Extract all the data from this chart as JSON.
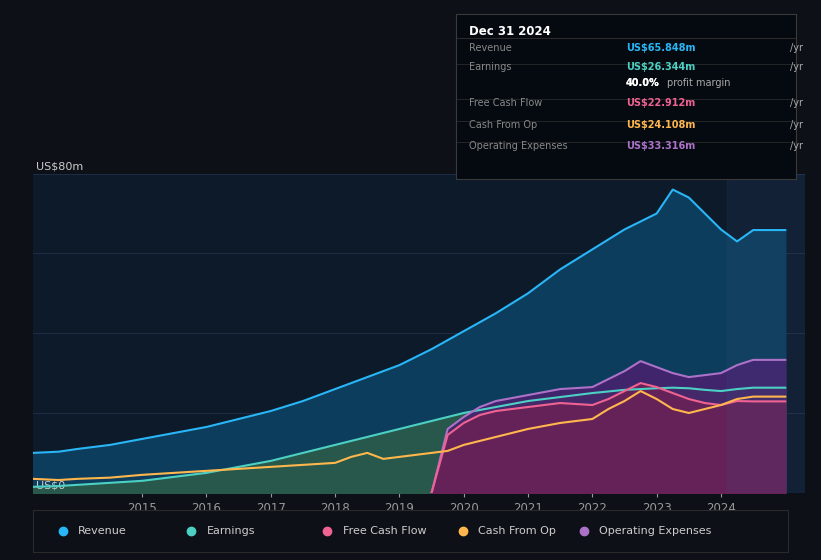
{
  "background_color": "#0d1117",
  "plot_bg_color": "#0d1a2a",
  "grid_color": "#253555",
  "title_y_label": "US$80m",
  "zero_label": "US$0",
  "x_ticks": [
    2015,
    2016,
    2017,
    2018,
    2019,
    2020,
    2021,
    2022,
    2023,
    2024
  ],
  "ylim": [
    0,
    80
  ],
  "xlim_start": 2013.3,
  "xlim_end": 2025.3,
  "revenue_color": "#29b6f6",
  "revenue_fill": "#0d3d5c",
  "earnings_color": "#4dd0c4",
  "earnings_fill": "#2a5c4a",
  "fcf_color": "#f06292",
  "fcf_fill": "#7b3060",
  "cashop_color": "#ffb74d",
  "opex_color": "#ab72c8",
  "opex_fill": "#4a2070",
  "tooltip_bg": "#000000",
  "legend_bg": "#0d1117",
  "revenue_data": [
    [
      2013.3,
      10.0
    ],
    [
      2013.7,
      10.3
    ],
    [
      2014.0,
      11.0
    ],
    [
      2014.5,
      12.0
    ],
    [
      2015.0,
      13.5
    ],
    [
      2015.5,
      15.0
    ],
    [
      2016.0,
      16.5
    ],
    [
      2016.5,
      18.5
    ],
    [
      2017.0,
      20.5
    ],
    [
      2017.5,
      23.0
    ],
    [
      2018.0,
      26.0
    ],
    [
      2018.5,
      29.0
    ],
    [
      2019.0,
      32.0
    ],
    [
      2019.5,
      36.0
    ],
    [
      2020.0,
      40.5
    ],
    [
      2020.5,
      45.0
    ],
    [
      2021.0,
      50.0
    ],
    [
      2021.5,
      56.0
    ],
    [
      2022.0,
      61.0
    ],
    [
      2022.5,
      66.0
    ],
    [
      2023.0,
      70.0
    ],
    [
      2023.25,
      76.0
    ],
    [
      2023.5,
      74.0
    ],
    [
      2023.75,
      70.0
    ],
    [
      2024.0,
      66.0
    ],
    [
      2024.25,
      63.0
    ],
    [
      2024.5,
      65.848
    ],
    [
      2024.75,
      65.848
    ],
    [
      2025.0,
      65.848
    ]
  ],
  "earnings_data": [
    [
      2013.3,
      1.5
    ],
    [
      2013.7,
      1.7
    ],
    [
      2014.0,
      2.0
    ],
    [
      2014.5,
      2.5
    ],
    [
      2015.0,
      3.0
    ],
    [
      2015.5,
      4.0
    ],
    [
      2016.0,
      5.0
    ],
    [
      2016.5,
      6.5
    ],
    [
      2017.0,
      8.0
    ],
    [
      2017.5,
      10.0
    ],
    [
      2018.0,
      12.0
    ],
    [
      2018.5,
      14.0
    ],
    [
      2019.0,
      16.0
    ],
    [
      2019.5,
      18.0
    ],
    [
      2020.0,
      20.0
    ],
    [
      2020.5,
      21.5
    ],
    [
      2021.0,
      23.0
    ],
    [
      2021.5,
      24.0
    ],
    [
      2022.0,
      25.0
    ],
    [
      2022.5,
      25.8
    ],
    [
      2023.0,
      26.2
    ],
    [
      2023.25,
      26.344
    ],
    [
      2023.5,
      26.2
    ],
    [
      2023.75,
      25.8
    ],
    [
      2024.0,
      25.5
    ],
    [
      2024.25,
      26.0
    ],
    [
      2024.5,
      26.344
    ],
    [
      2024.75,
      26.344
    ],
    [
      2025.0,
      26.344
    ]
  ],
  "cashop_data": [
    [
      2013.3,
      3.5
    ],
    [
      2013.7,
      3.2
    ],
    [
      2014.0,
      3.5
    ],
    [
      2014.5,
      3.8
    ],
    [
      2015.0,
      4.5
    ],
    [
      2015.5,
      5.0
    ],
    [
      2016.0,
      5.5
    ],
    [
      2016.5,
      6.0
    ],
    [
      2017.0,
      6.5
    ],
    [
      2017.5,
      7.0
    ],
    [
      2018.0,
      7.5
    ],
    [
      2018.25,
      9.0
    ],
    [
      2018.5,
      10.0
    ],
    [
      2018.75,
      8.5
    ],
    [
      2019.0,
      9.0
    ],
    [
      2019.25,
      9.5
    ],
    [
      2019.5,
      10.0
    ],
    [
      2019.75,
      10.5
    ],
    [
      2020.0,
      12.0
    ],
    [
      2020.5,
      14.0
    ],
    [
      2021.0,
      16.0
    ],
    [
      2021.5,
      17.5
    ],
    [
      2022.0,
      18.5
    ],
    [
      2022.25,
      21.0
    ],
    [
      2022.5,
      23.0
    ],
    [
      2022.75,
      25.5
    ],
    [
      2023.0,
      23.5
    ],
    [
      2023.25,
      21.0
    ],
    [
      2023.5,
      20.0
    ],
    [
      2023.75,
      21.0
    ],
    [
      2024.0,
      22.0
    ],
    [
      2024.25,
      23.5
    ],
    [
      2024.5,
      24.108
    ],
    [
      2024.75,
      24.108
    ],
    [
      2025.0,
      24.108
    ]
  ],
  "opex_data": [
    [
      2019.5,
      0.0
    ],
    [
      2019.75,
      16.0
    ],
    [
      2020.0,
      19.0
    ],
    [
      2020.25,
      21.5
    ],
    [
      2020.5,
      23.0
    ],
    [
      2021.0,
      24.5
    ],
    [
      2021.5,
      26.0
    ],
    [
      2022.0,
      26.5
    ],
    [
      2022.25,
      28.5
    ],
    [
      2022.5,
      30.5
    ],
    [
      2022.75,
      33.0
    ],
    [
      2023.0,
      31.5
    ],
    [
      2023.25,
      30.0
    ],
    [
      2023.5,
      29.0
    ],
    [
      2023.75,
      29.5
    ],
    [
      2024.0,
      30.0
    ],
    [
      2024.25,
      32.0
    ],
    [
      2024.5,
      33.316
    ],
    [
      2024.75,
      33.316
    ],
    [
      2025.0,
      33.316
    ]
  ],
  "fcf_data": [
    [
      2019.5,
      0.0
    ],
    [
      2019.75,
      14.5
    ],
    [
      2020.0,
      17.5
    ],
    [
      2020.25,
      19.5
    ],
    [
      2020.5,
      20.5
    ],
    [
      2021.0,
      21.5
    ],
    [
      2021.5,
      22.5
    ],
    [
      2022.0,
      22.0
    ],
    [
      2022.25,
      23.5
    ],
    [
      2022.5,
      25.5
    ],
    [
      2022.75,
      27.5
    ],
    [
      2023.0,
      26.5
    ],
    [
      2023.25,
      25.0
    ],
    [
      2023.5,
      23.5
    ],
    [
      2023.75,
      22.5
    ],
    [
      2024.0,
      22.0
    ],
    [
      2024.25,
      23.0
    ],
    [
      2024.5,
      22.912
    ],
    [
      2024.75,
      22.912
    ],
    [
      2025.0,
      22.912
    ]
  ],
  "shading_start": 2024.1,
  "legend_items": [
    {
      "label": "Revenue",
      "color": "#29b6f6"
    },
    {
      "label": "Earnings",
      "color": "#4dd0c4"
    },
    {
      "label": "Free Cash Flow",
      "color": "#f06292"
    },
    {
      "label": "Cash From Op",
      "color": "#ffb74d"
    },
    {
      "label": "Operating Expenses",
      "color": "#ab72c8"
    }
  ],
  "tooltip": {
    "date": "Dec 31 2024",
    "rows": [
      {
        "label": "Revenue",
        "value": "US$65.848m",
        "unit": "/yr",
        "color": "#29b6f6"
      },
      {
        "label": "Earnings",
        "value": "US$26.344m",
        "unit": "/yr",
        "color": "#4dd0c4"
      },
      {
        "label": "",
        "value": "40.0%",
        "unit": "profit margin",
        "color": "#ffffff"
      },
      {
        "label": "Free Cash Flow",
        "value": "US$22.912m",
        "unit": "/yr",
        "color": "#f06292"
      },
      {
        "label": "Cash From Op",
        "value": "US$24.108m",
        "unit": "/yr",
        "color": "#ffb74d"
      },
      {
        "label": "Operating Expenses",
        "value": "US$33.316m",
        "unit": "/yr",
        "color": "#ab72c8"
      }
    ]
  }
}
